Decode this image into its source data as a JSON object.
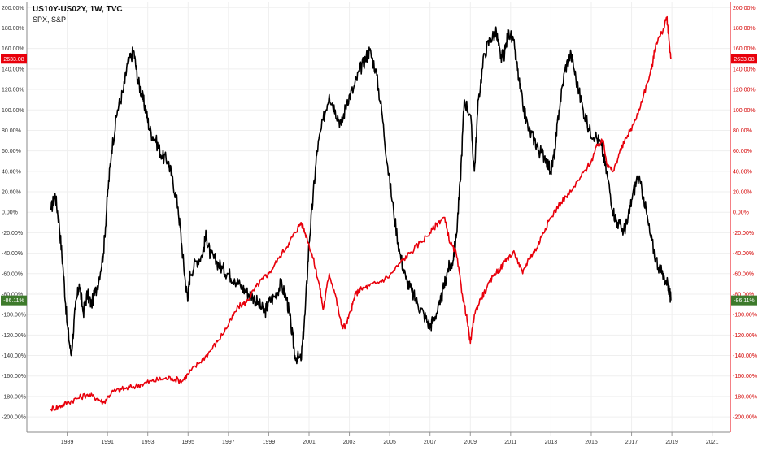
{
  "legend": {
    "title": "US10Y-US02Y, 1W, TVC",
    "subtitle": "SPX, S&P"
  },
  "colors": {
    "spread": "#000000",
    "spx": "#e8000b",
    "right_axis": "#e8000b",
    "badge_spx": "#e8000b",
    "badge_spread": "#3d7a2b",
    "grid": "#efefef"
  },
  "badges": {
    "spx_value": "2633.08",
    "spread_value": "-86.11%"
  },
  "chart_data": {
    "type": "line",
    "title": "",
    "xlabel": "",
    "ylabel": "",
    "x_range": [
      1987.0,
      2021.9
    ],
    "ylim": [
      -215,
      205
    ],
    "y_ticks": [
      200,
      180,
      160,
      140,
      120,
      100,
      80,
      60,
      40,
      20,
      0,
      -20,
      -40,
      -60,
      -80,
      -100,
      -120,
      -140,
      -160,
      -180,
      -200
    ],
    "y_tick_labels": [
      "200.00%",
      "180.00%",
      "160.00%",
      "140.00%",
      "120.00%",
      "100.00%",
      "80.00%",
      "60.00%",
      "40.00%",
      "20.00%",
      "0.00%",
      "-20.00%",
      "-40.00%",
      "-60.00%",
      "-80.00%",
      "-100.00%",
      "-120.00%",
      "-140.00%",
      "-160.00%",
      "-180.00%",
      "-200.00%"
    ],
    "x_ticks": [
      "1989",
      "1991",
      "1993",
      "1995",
      "1997",
      "1999",
      "2001",
      "2003",
      "2005",
      "2007",
      "2009",
      "2011",
      "2013",
      "2015",
      "2017",
      "2019",
      "2021"
    ],
    "grid": true,
    "series": [
      {
        "name": "US10Y-US02Y",
        "color": "#000000",
        "x": [
          1988.2,
          1988.4,
          1988.6,
          1988.8,
          1989.0,
          1989.2,
          1989.4,
          1989.6,
          1989.8,
          1990.0,
          1990.2,
          1990.5,
          1990.8,
          1991.0,
          1991.2,
          1991.5,
          1991.8,
          1992.0,
          1992.3,
          1992.5,
          1992.7,
          1992.9,
          1993.1,
          1993.4,
          1993.7,
          1994.0,
          1994.2,
          1994.5,
          1994.7,
          1994.9,
          1995.0,
          1995.1,
          1995.4,
          1995.7,
          1995.9,
          1996.1,
          1996.4,
          1996.7,
          1997.0,
          1997.3,
          1997.6,
          1997.9,
          1998.2,
          1998.5,
          1998.8,
          1999.0,
          1999.3,
          1999.6,
          1999.9,
          2000.1,
          2000.3,
          2000.6,
          2000.8,
          2001.0,
          2001.2,
          2001.4,
          2001.7,
          2002.0,
          2002.3,
          2002.6,
          2002.9,
          2003.2,
          2003.5,
          2003.8,
          2004.0,
          2004.3,
          2004.6,
          2004.9,
          2005.2,
          2005.5,
          2005.8,
          2006.1,
          2006.4,
          2006.7,
          2007.0,
          2007.2,
          2007.5,
          2007.7,
          2007.9,
          2008.1,
          2008.3,
          2008.5,
          2008.7,
          2009.0,
          2009.2,
          2009.4,
          2009.7,
          2010.0,
          2010.3,
          2010.5,
          2010.7,
          2010.9,
          2011.2,
          2011.4,
          2011.6,
          2011.9,
          2012.2,
          2012.4,
          2012.7,
          2013.0,
          2013.2,
          2013.4,
          2013.7,
          2014.0,
          2014.3,
          2014.6,
          2014.9,
          2015.2,
          2015.5,
          2015.8,
          2016.1,
          2016.3,
          2016.6,
          2016.8,
          2017.0,
          2017.3,
          2017.6,
          2017.9,
          2018.2,
          2018.5,
          2018.8,
          2018.95
        ],
        "y": [
          2,
          18,
          -10,
          -55,
          -110,
          -140,
          -95,
          -70,
          -98,
          -80,
          -90,
          -72,
          -40,
          15,
          60,
          100,
          120,
          145,
          158,
          130,
          115,
          100,
          80,
          70,
          55,
          50,
          35,
          5,
          -35,
          -75,
          -82,
          -60,
          -48,
          -42,
          -22,
          -42,
          -48,
          -55,
          -60,
          -65,
          -72,
          -78,
          -82,
          -90,
          -98,
          -88,
          -82,
          -70,
          -85,
          -110,
          -140,
          -145,
          -100,
          -30,
          15,
          60,
          90,
          115,
          100,
          85,
          110,
          120,
          138,
          150,
          158,
          140,
          100,
          45,
          0,
          -40,
          -65,
          -78,
          -90,
          -100,
          -112,
          -103,
          -90,
          -72,
          -55,
          -50,
          -25,
          30,
          110,
          95,
          40,
          110,
          155,
          170,
          175,
          150,
          155,
          178,
          160,
          130,
          105,
          80,
          70,
          60,
          55,
          40,
          60,
          100,
          140,
          155,
          125,
          100,
          80,
          75,
          65,
          35,
          0,
          -10,
          -18,
          -10,
          12,
          35,
          15,
          -20,
          -45,
          -60,
          -70,
          -86.11
        ]
      },
      {
        "name": "SPX, S&P",
        "color": "#e8000b",
        "x": [
          1988.2,
          1988.6,
          1989.0,
          1989.5,
          1990.0,
          1990.5,
          1990.8,
          1991.2,
          1991.7,
          1992.2,
          1992.7,
          1993.2,
          1993.7,
          1994.2,
          1994.7,
          1995.0,
          1995.5,
          1996.0,
          1996.5,
          1997.0,
          1997.5,
          1997.9,
          1998.3,
          1998.7,
          1999.0,
          1999.5,
          2000.0,
          2000.3,
          2000.6,
          2000.9,
          2001.2,
          2001.5,
          2001.7,
          2002.0,
          2002.3,
          2002.6,
          2002.8,
          2003.1,
          2003.3,
          2003.6,
          2004.0,
          2004.5,
          2005.0,
          2005.5,
          2006.0,
          2006.5,
          2007.0,
          2007.4,
          2007.7,
          2008.0,
          2008.3,
          2008.6,
          2008.8,
          2009.0,
          2009.2,
          2009.5,
          2009.8,
          2010.2,
          2010.5,
          2010.8,
          2011.2,
          2011.6,
          2011.9,
          2012.3,
          2012.6,
          2013.0,
          2013.5,
          2014.0,
          2014.5,
          2015.0,
          2015.3,
          2015.6,
          2015.8,
          2016.1,
          2016.4,
          2016.8,
          2017.2,
          2017.6,
          2018.0,
          2018.2,
          2018.5,
          2018.75,
          2018.85,
          2018.95
        ],
        "y": [
          -192,
          -190,
          -186,
          -182,
          -178,
          -182,
          -186,
          -176,
          -173,
          -171,
          -168,
          -165,
          -163,
          -162,
          -165,
          -158,
          -148,
          -138,
          -125,
          -110,
          -92,
          -88,
          -75,
          -65,
          -60,
          -45,
          -30,
          -20,
          -10,
          -25,
          -45,
          -70,
          -95,
          -60,
          -80,
          -110,
          -112,
          -95,
          -80,
          -75,
          -72,
          -68,
          -62,
          -50,
          -40,
          -30,
          -20,
          -10,
          -5,
          -30,
          -40,
          -80,
          -100,
          -128,
          -100,
          -85,
          -75,
          -60,
          -55,
          -45,
          -40,
          -60,
          -45,
          -35,
          -20,
          -5,
          10,
          20,
          35,
          50,
          65,
          70,
          45,
          40,
          58,
          75,
          90,
          115,
          140,
          165,
          175,
          190,
          170,
          150
        ]
      }
    ]
  }
}
